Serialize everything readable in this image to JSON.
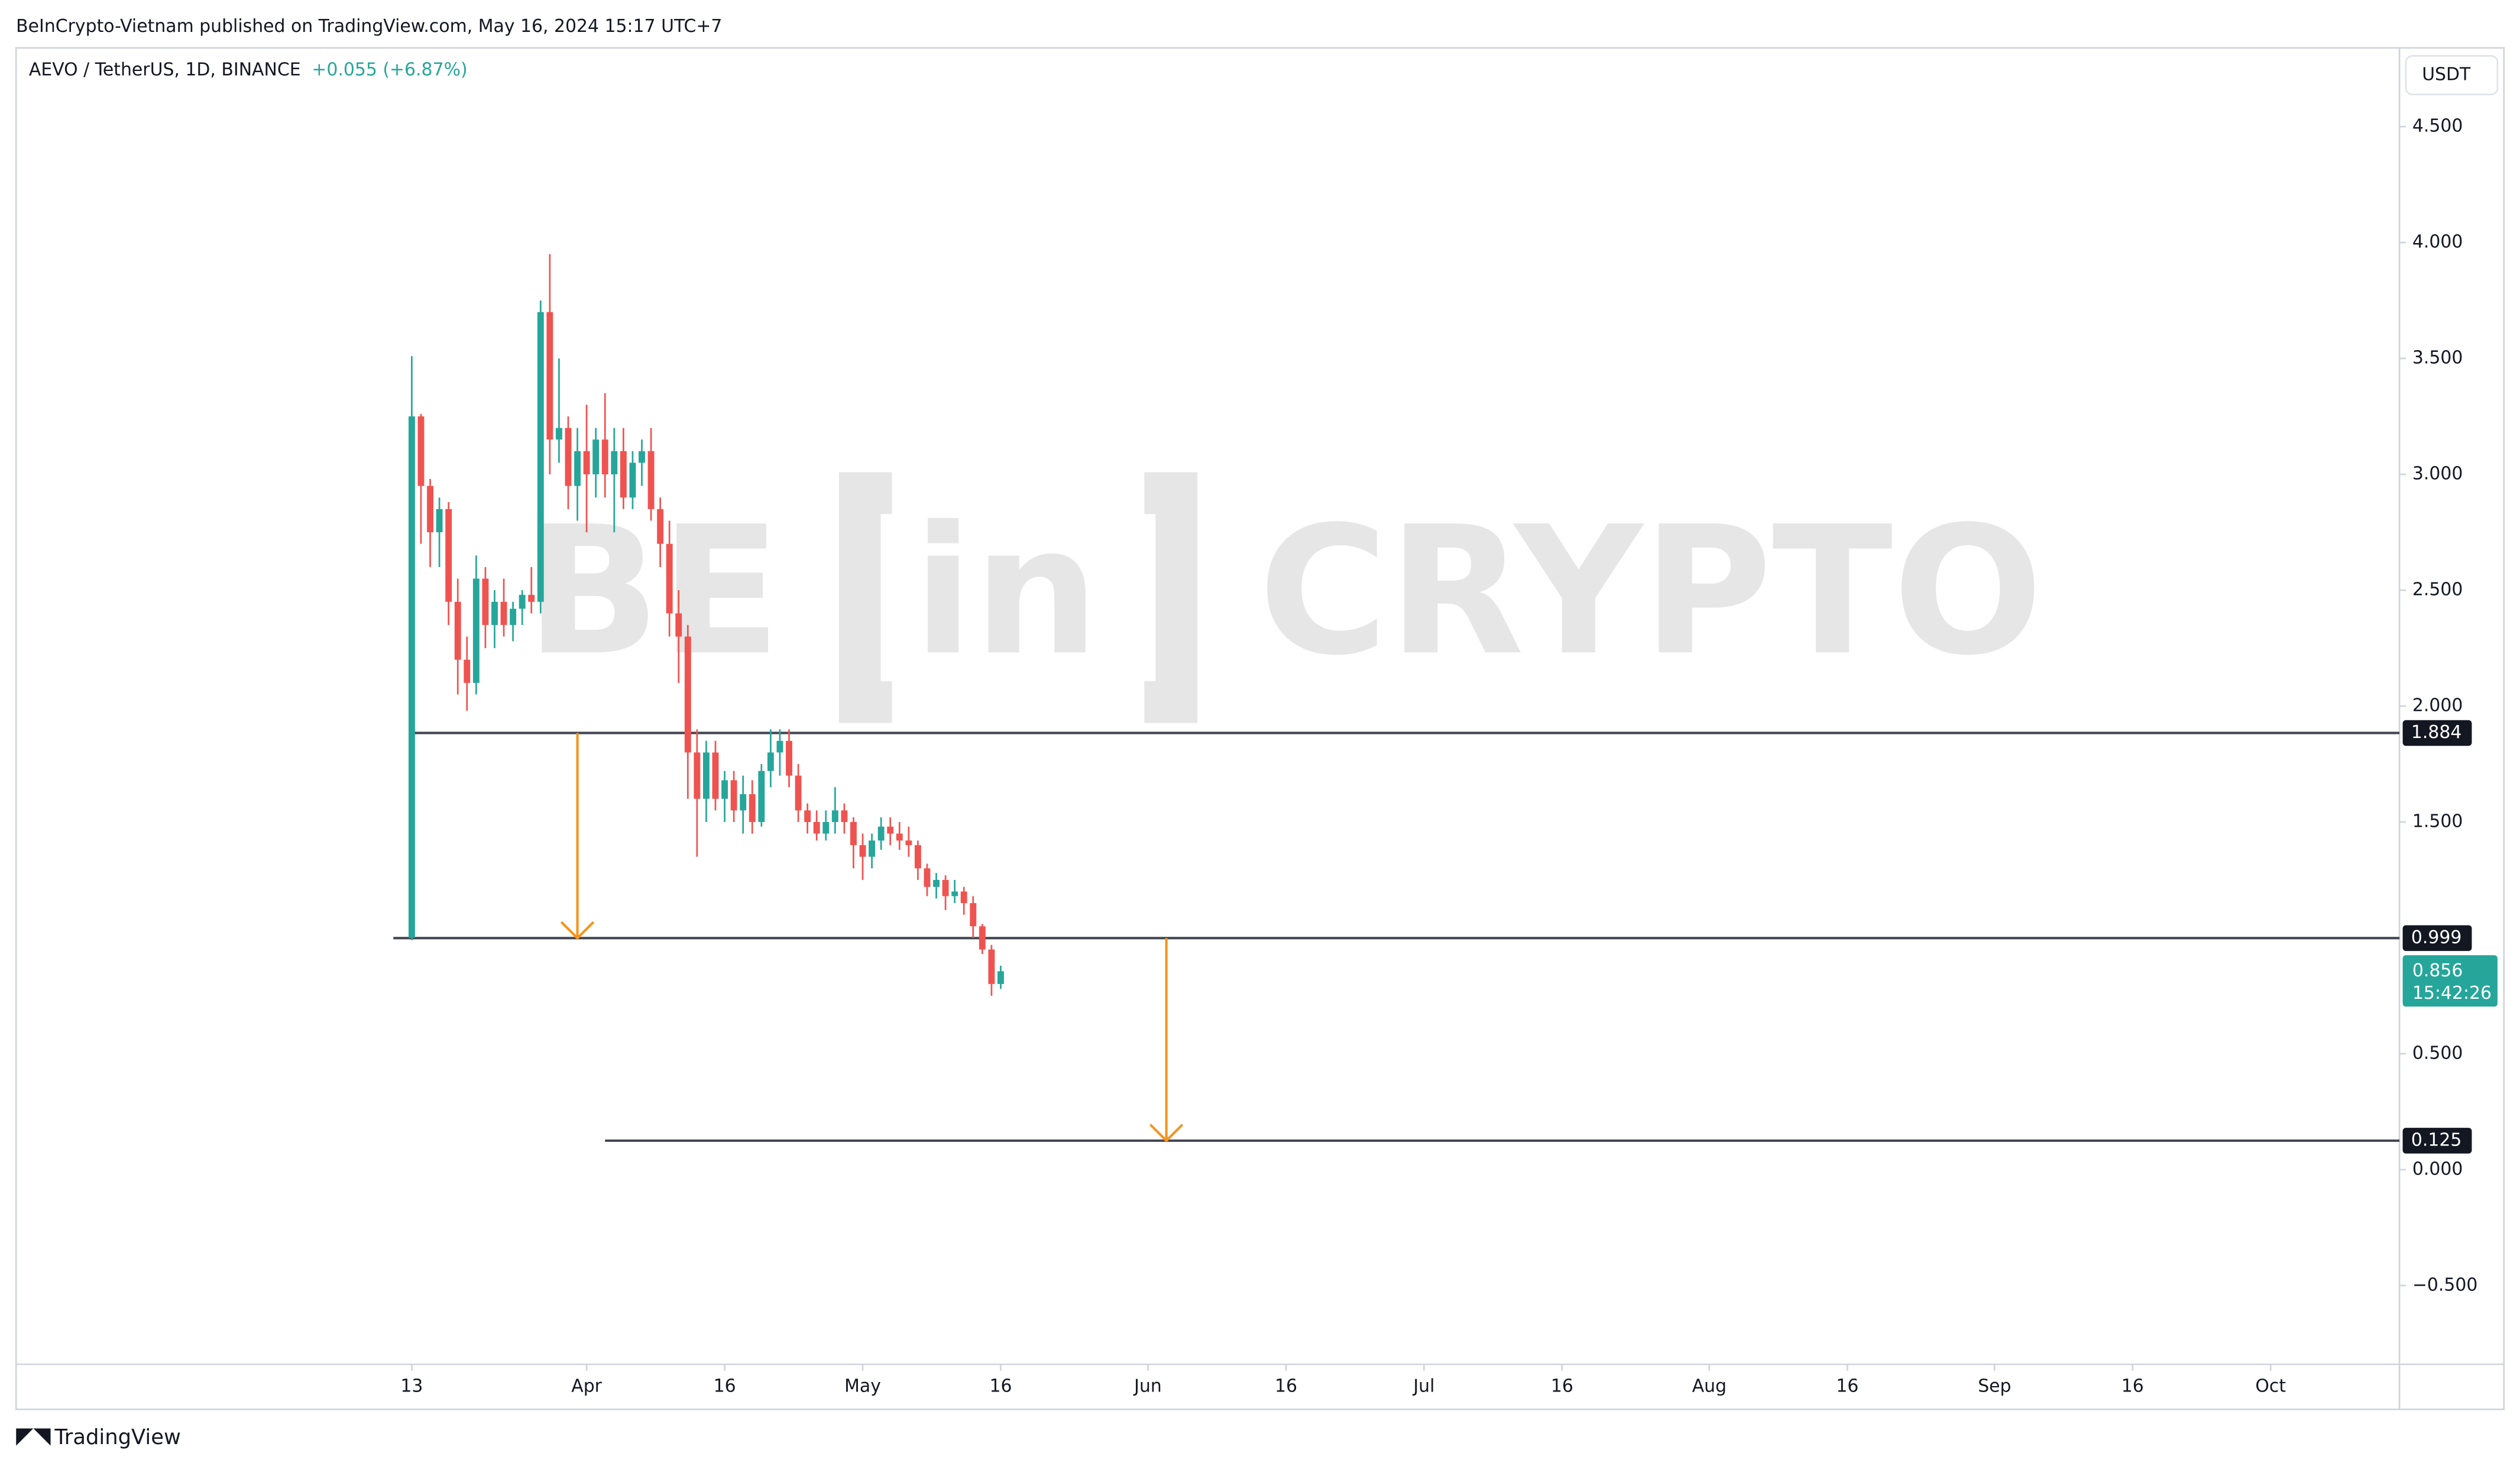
{
  "chart_data": {
    "type": "candlestick",
    "attribution": "BeInCrypto-Vietnam published on TradingView.com, May 16, 2024 15:17 UTC+7",
    "symbol": "AEVO / TetherUS, 1D, BINANCE",
    "change": "+0.055 (+6.87%)",
    "currency": "USDT",
    "watermark": [
      "BE",
      "in",
      "CRYPTO"
    ],
    "footer": "TradingView",
    "up_color": "#26a69a",
    "down_color": "#ef5350",
    "grid": false,
    "x": [
      "2024-03-13",
      "2024-03-14",
      "2024-03-15",
      "2024-03-16",
      "2024-03-17",
      "2024-03-18",
      "2024-03-19",
      "2024-03-20",
      "2024-03-21",
      "2024-03-22",
      "2024-03-23",
      "2024-03-24",
      "2024-03-25",
      "2024-03-26",
      "2024-03-27",
      "2024-03-28",
      "2024-03-29",
      "2024-03-30",
      "2024-03-31",
      "2024-04-01",
      "2024-04-02",
      "2024-04-03",
      "2024-04-04",
      "2024-04-05",
      "2024-04-06",
      "2024-04-07",
      "2024-04-08",
      "2024-04-09",
      "2024-04-10",
      "2024-04-11",
      "2024-04-12",
      "2024-04-13",
      "2024-04-14",
      "2024-04-15",
      "2024-04-16",
      "2024-04-17",
      "2024-04-18",
      "2024-04-19",
      "2024-04-20",
      "2024-04-21",
      "2024-04-22",
      "2024-04-23",
      "2024-04-24",
      "2024-04-25",
      "2024-04-26",
      "2024-04-27",
      "2024-04-28",
      "2024-04-29",
      "2024-04-30",
      "2024-05-01",
      "2024-05-02",
      "2024-05-03",
      "2024-05-04",
      "2024-05-05",
      "2024-05-06",
      "2024-05-07",
      "2024-05-08",
      "2024-05-09",
      "2024-05-10",
      "2024-05-11",
      "2024-05-12",
      "2024-05-13",
      "2024-05-14",
      "2024-05-15",
      "2024-05-16"
    ],
    "open": [
      1.0,
      3.25,
      2.95,
      2.75,
      2.85,
      2.45,
      2.2,
      2.1,
      2.55,
      2.35,
      2.45,
      2.35,
      2.42,
      2.48,
      2.45,
      3.7,
      3.15,
      3.2,
      2.95,
      3.1,
      3.0,
      3.15,
      3.0,
      3.1,
      2.9,
      3.05,
      3.1,
      2.85,
      2.7,
      2.4,
      2.3,
      1.8,
      1.6,
      1.8,
      1.6,
      1.68,
      1.55,
      1.62,
      1.5,
      1.72,
      1.8,
      1.85,
      1.7,
      1.55,
      1.5,
      1.45,
      1.5,
      1.55,
      1.5,
      1.4,
      1.35,
      1.42,
      1.48,
      1.45,
      1.42,
      1.4,
      1.3,
      1.22,
      1.25,
      1.18,
      1.2,
      1.15,
      1.05,
      0.95,
      0.801
    ],
    "high": [
      3.51,
      3.26,
      2.98,
      2.9,
      2.88,
      2.55,
      2.3,
      2.65,
      2.6,
      2.5,
      2.55,
      2.45,
      2.5,
      2.6,
      3.75,
      3.95,
      3.5,
      3.25,
      3.2,
      3.3,
      3.2,
      3.35,
      3.2,
      3.2,
      3.1,
      3.15,
      3.2,
      2.9,
      2.8,
      2.5,
      2.35,
      1.9,
      1.85,
      1.85,
      1.72,
      1.72,
      1.7,
      1.68,
      1.75,
      1.9,
      1.9,
      1.9,
      1.75,
      1.58,
      1.55,
      1.55,
      1.65,
      1.58,
      1.52,
      1.45,
      1.45,
      1.52,
      1.52,
      1.5,
      1.48,
      1.42,
      1.32,
      1.28,
      1.27,
      1.25,
      1.22,
      1.18,
      1.06,
      0.97,
      0.88
    ],
    "low": [
      0.99,
      2.7,
      2.6,
      2.6,
      2.35,
      2.05,
      1.98,
      2.05,
      2.25,
      2.25,
      2.3,
      2.28,
      2.35,
      2.4,
      2.4,
      3.0,
      3.05,
      2.85,
      2.8,
      2.75,
      2.9,
      2.9,
      2.75,
      2.85,
      2.85,
      2.95,
      2.8,
      2.6,
      2.3,
      2.1,
      1.6,
      1.35,
      1.5,
      1.55,
      1.5,
      1.5,
      1.45,
      1.45,
      1.48,
      1.65,
      1.7,
      1.65,
      1.5,
      1.45,
      1.42,
      1.42,
      1.45,
      1.45,
      1.3,
      1.25,
      1.3,
      1.38,
      1.4,
      1.38,
      1.35,
      1.25,
      1.18,
      1.17,
      1.12,
      1.15,
      1.1,
      1.0,
      0.93,
      0.75,
      0.78
    ],
    "close": [
      3.25,
      2.95,
      2.75,
      2.85,
      2.45,
      2.2,
      2.1,
      2.55,
      2.35,
      2.45,
      2.35,
      2.42,
      2.48,
      2.45,
      3.7,
      3.15,
      3.2,
      2.95,
      3.1,
      3.0,
      3.15,
      3.0,
      3.1,
      2.9,
      3.05,
      3.1,
      2.85,
      2.7,
      2.4,
      2.3,
      1.8,
      1.6,
      1.8,
      1.6,
      1.68,
      1.55,
      1.62,
      1.5,
      1.72,
      1.8,
      1.85,
      1.7,
      1.55,
      1.5,
      1.45,
      1.5,
      1.55,
      1.5,
      1.4,
      1.35,
      1.42,
      1.48,
      1.45,
      1.42,
      1.4,
      1.3,
      1.22,
      1.25,
      1.18,
      1.2,
      1.15,
      1.05,
      0.95,
      0.801,
      0.856
    ],
    "xlim": [
      "2024-01-30",
      "2024-10-15"
    ],
    "xticks": [
      {
        "value": "2024-03-13",
        "label": "13"
      },
      {
        "value": "2024-04-01",
        "label": "Apr"
      },
      {
        "value": "2024-04-16",
        "label": "16"
      },
      {
        "value": "2024-05-01",
        "label": "May"
      },
      {
        "value": "2024-05-16",
        "label": "16"
      },
      {
        "value": "2024-06-01",
        "label": "Jun"
      },
      {
        "value": "2024-06-16",
        "label": "16"
      },
      {
        "value": "2024-07-01",
        "label": "Jul"
      },
      {
        "value": "2024-07-16",
        "label": "16"
      },
      {
        "value": "2024-08-01",
        "label": "Aug"
      },
      {
        "value": "2024-08-16",
        "label": "16"
      },
      {
        "value": "2024-09-01",
        "label": "Sep"
      },
      {
        "value": "2024-09-16",
        "label": "16"
      },
      {
        "value": "2024-10-01",
        "label": "Oct"
      }
    ],
    "ylim": [
      -0.84,
      4.84
    ],
    "yticks": [
      {
        "value": 4.5,
        "label": "4.500"
      },
      {
        "value": 4,
        "label": "4.000"
      },
      {
        "value": 3.5,
        "label": "3.500"
      },
      {
        "value": 3,
        "label": "3.000"
      },
      {
        "value": 2.5,
        "label": "2.500"
      },
      {
        "value": 2,
        "label": "2.000"
      },
      {
        "value": 1.5,
        "label": "1.500"
      },
      {
        "value": 0.5,
        "label": "0.500"
      },
      {
        "value": 0,
        "label": "0.000"
      },
      {
        "value": -0.5,
        "label": "−0.500"
      }
    ],
    "levels": [
      {
        "value": 1.884,
        "start": "2024-03-13"
      },
      {
        "value": 0.999,
        "start": "2024-03-11"
      },
      {
        "value": 0.125,
        "start": "2024-04-03"
      }
    ],
    "arrows": [
      {
        "x": "2024-03-31",
        "from": 1.884,
        "to": 0.999
      },
      {
        "x": "2024-06-03",
        "from": 0.999,
        "to": 0.125
      }
    ],
    "arrow_color": "#f7931a",
    "last_price": 0.856,
    "countdown": "15:42:26"
  }
}
